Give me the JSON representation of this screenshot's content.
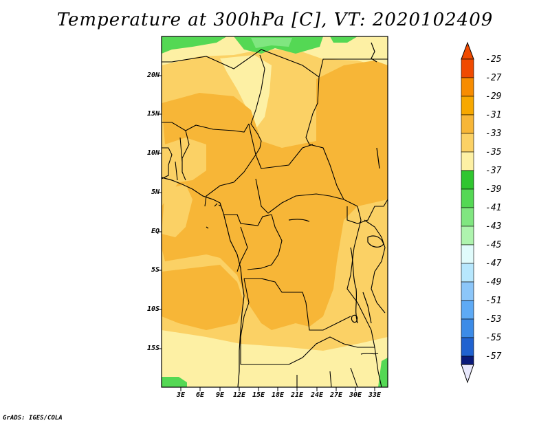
{
  "title": "Temperature at 300hPa [C], VT: 2020102409",
  "footer": "GrADS: IGES/COLA",
  "lat_labels": [
    "20N",
    "15N",
    "10N",
    "5N",
    "EQ",
    "5S",
    "10S",
    "15S"
  ],
  "lon_labels": [
    "3E",
    "6E",
    "9E",
    "12E",
    "15E",
    "18E",
    "21E",
    "24E",
    "27E",
    "30E",
    "33E"
  ],
  "colorbar": {
    "labels": [
      "-25",
      "-27",
      "-29",
      "-31",
      "-33",
      "-35",
      "-37",
      "-39",
      "-41",
      "-43",
      "-45",
      "-47",
      "-49",
      "-51",
      "-53",
      "-55",
      "-57"
    ],
    "colors": [
      "#f04a00",
      "#f78c00",
      "#f7a800",
      "#f7b637",
      "#fbd165",
      "#fdf0a4",
      "#30c630",
      "#54d854",
      "#80e680",
      "#aef4ae",
      "#e0fbfb",
      "#b7e7fd",
      "#8cc6f9",
      "#5eaaf5",
      "#3c8be7",
      "#2062d0",
      "#1041b4",
      "#0a1a7a",
      "#e8e8fc"
    ]
  },
  "map": {
    "domain": "Central & West Africa (approx. 0E–35E, 20S–25N)",
    "field_colors": {
      "pale": "#fdf0a4",
      "light": "#fbd165",
      "mid": "#f7b637",
      "dark": "#f7a800",
      "green": "#54d854",
      "lightgreen": "#80e680"
    }
  }
}
